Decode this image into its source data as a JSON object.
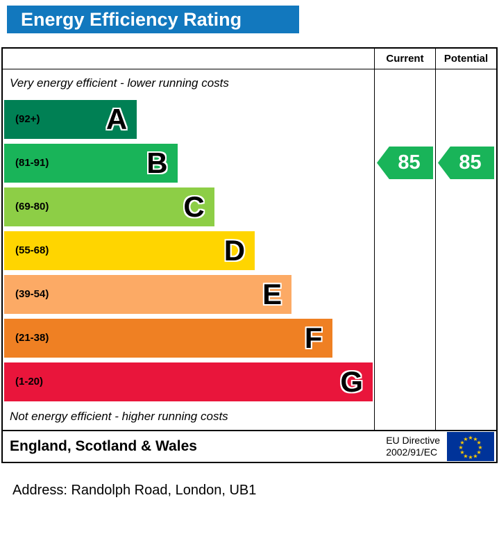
{
  "title": "Energy Efficiency Rating",
  "chart_data": {
    "type": "bar",
    "title": "Energy Efficiency Rating",
    "categories": [
      "A",
      "B",
      "C",
      "D",
      "E",
      "F",
      "G"
    ],
    "bands": [
      {
        "letter": "A",
        "range_label": "(92+)",
        "range": [
          92,
          100
        ],
        "color": "#008054",
        "width_pct": 36
      },
      {
        "letter": "B",
        "range_label": "(81-91)",
        "range": [
          81,
          91
        ],
        "color": "#19b459",
        "width_pct": 47
      },
      {
        "letter": "C",
        "range_label": "(69-80)",
        "range": [
          69,
          80
        ],
        "color": "#8dce46",
        "width_pct": 57
      },
      {
        "letter": "D",
        "range_label": "(55-68)",
        "range": [
          55,
          68
        ],
        "color": "#ffd500",
        "width_pct": 68
      },
      {
        "letter": "E",
        "range_label": "(39-54)",
        "range": [
          39,
          54
        ],
        "color": "#fcaa65",
        "width_pct": 78
      },
      {
        "letter": "F",
        "range_label": "(21-38)",
        "range": [
          21,
          38
        ],
        "color": "#ef8023",
        "width_pct": 89
      },
      {
        "letter": "G",
        "range_label": "(1-20)",
        "range": [
          1,
          20
        ],
        "color": "#e9153b",
        "width_pct": 100
      }
    ],
    "current": {
      "label": "Current",
      "value": 85,
      "band": "B",
      "color": "#19b459"
    },
    "potential": {
      "label": "Potential",
      "value": 85,
      "band": "B",
      "color": "#19b459"
    },
    "top_note": "Very energy efficient - lower running costs",
    "bottom_note": "Not energy efficient - higher running costs",
    "legend_position": "none",
    "grid": false
  },
  "footer": {
    "region": "England, Scotland & Wales",
    "directive_line1": "EU Directive",
    "directive_line2": "2002/91/EC",
    "eu_flag": {
      "background": "#003399",
      "stars": "#ffcc00"
    }
  },
  "address_line": "Address: Randolph Road, London, UB1"
}
